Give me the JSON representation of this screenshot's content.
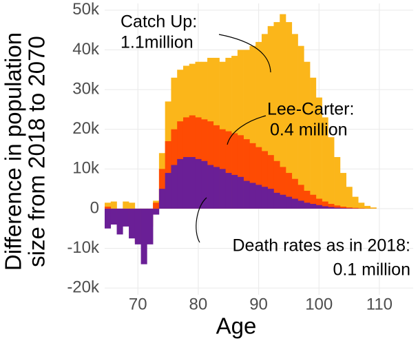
{
  "chart_data": {
    "type": "bar",
    "x_label": "Age",
    "y_label": [
      "Difference in population",
      "size from 2018 to 2070"
    ],
    "x": [
      65,
      66,
      67,
      68,
      69,
      70,
      71,
      72,
      73,
      74,
      75,
      76,
      77,
      78,
      79,
      80,
      81,
      82,
      83,
      84,
      85,
      86,
      87,
      88,
      89,
      90,
      91,
      92,
      93,
      94,
      95,
      96,
      97,
      98,
      99,
      100,
      101,
      102,
      103,
      104,
      105,
      106,
      107,
      108,
      109
    ],
    "series": [
      {
        "name": "Catch Up",
        "color": "#fbb61a",
        "values": [
          1500,
          1800,
          -2000,
          1800,
          1500,
          -3000,
          -8000,
          -4000,
          2000,
          14000,
          27000,
          33000,
          35000,
          36000,
          36500,
          37000,
          37000,
          38000,
          38000,
          37000,
          38000,
          38500,
          40000,
          40000,
          41000,
          42000,
          44000,
          46000,
          47000,
          49000,
          47000,
          44000,
          41000,
          37000,
          33000,
          28000,
          23000,
          18000,
          13000,
          9000,
          5500,
          3000,
          1500,
          700,
          300
        ]
      },
      {
        "name": "Lee-Carter",
        "color": "#fe4b03",
        "values": [
          500,
          -2500,
          -4500,
          -3000,
          -4500,
          -8500,
          -9000,
          -4500,
          1500,
          10000,
          17000,
          20000,
          22000,
          23000,
          23500,
          23000,
          22500,
          22000,
          21000,
          20000,
          19500,
          19000,
          18500,
          17500,
          16500,
          15500,
          14500,
          13500,
          12000,
          10500,
          9000,
          7500,
          6000,
          4500,
          3500,
          2500,
          1800,
          1200,
          800,
          500,
          300,
          200,
          100,
          50,
          20
        ]
      },
      {
        "name": "Death rates as in 2018",
        "color": "#6a1f96",
        "values": [
          -5000,
          -4000,
          -6500,
          -4500,
          -7500,
          -9000,
          -14000,
          -9000,
          -1500,
          5000,
          9000,
          11000,
          12500,
          13000,
          13000,
          12500,
          12000,
          11000,
          10500,
          10000,
          9000,
          8500,
          8000,
          7000,
          6500,
          6000,
          5500,
          5000,
          4000,
          3500,
          3000,
          2500,
          2000,
          1500,
          1200,
          900,
          600,
          400,
          250,
          150,
          100,
          50,
          30,
          10,
          5
        ]
      }
    ],
    "annotations": [
      {
        "text": [
          "Catch Up:",
          "1.1million"
        ]
      },
      {
        "text": [
          "Lee-Carter:",
          "0.4 million"
        ]
      },
      {
        "text": [
          "Death rates as in 2018:",
          "0.1 million"
        ]
      }
    ],
    "xlim": [
      64.5,
      115.6
    ],
    "xticks": [
      70,
      80,
      90,
      100,
      110
    ],
    "ylim": [
      -21700,
      51700
    ],
    "yticks": [
      {
        "value": -20000,
        "label": "-20k"
      },
      {
        "value": -10000,
        "label": "-10k"
      },
      0,
      {
        "value": 10000,
        "label": "10k"
      },
      {
        "value": 20000,
        "label": "20k"
      },
      {
        "value": 30000,
        "label": "30k"
      },
      {
        "value": 40000,
        "label": "40k"
      },
      {
        "value": 50000,
        "label": "50k"
      }
    ],
    "grid": true
  }
}
